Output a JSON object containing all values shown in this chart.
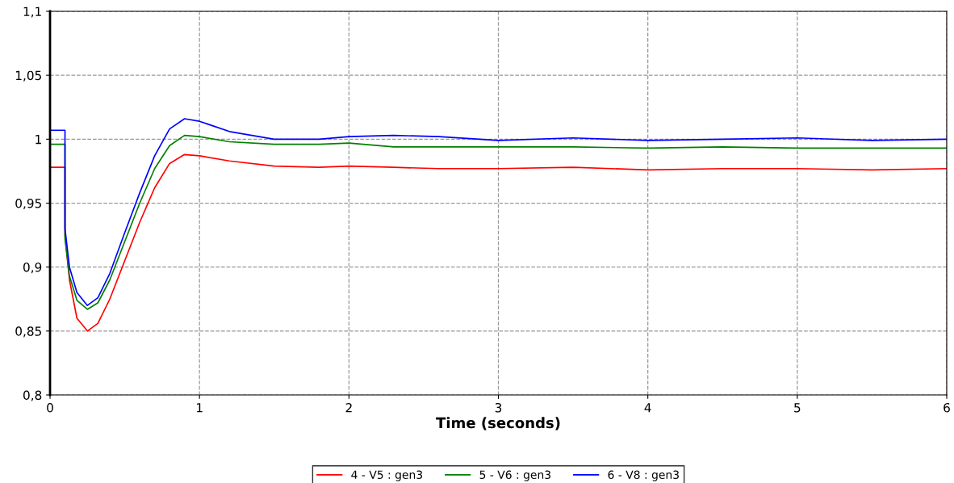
{
  "chart_data": {
    "type": "line",
    "xlabel": "Time (seconds)",
    "x": [
      0,
      0.1,
      0.1,
      0.13,
      0.18,
      0.25,
      0.32,
      0.4,
      0.5,
      0.6,
      0.7,
      0.8,
      0.9,
      1.0,
      1.2,
      1.5,
      1.8,
      2.0,
      2.3,
      2.6,
      3.0,
      3.5,
      4.0,
      4.5,
      5.0,
      5.5,
      6.0
    ],
    "series": [
      {
        "name": "4 - V5 : gen3",
        "color": "#ff0000",
        "values": [
          0.978,
          0.978,
          0.925,
          0.89,
          0.86,
          0.85,
          0.856,
          0.875,
          0.905,
          0.935,
          0.962,
          0.981,
          0.988,
          0.987,
          0.983,
          0.979,
          0.978,
          0.979,
          0.978,
          0.977,
          0.977,
          0.978,
          0.976,
          0.977,
          0.977,
          0.976,
          0.977
        ]
      },
      {
        "name": "5 - V6 : gen3",
        "color": "#008000",
        "values": [
          0.996,
          0.996,
          0.922,
          0.893,
          0.874,
          0.867,
          0.872,
          0.89,
          0.92,
          0.95,
          0.977,
          0.995,
          1.003,
          1.002,
          0.998,
          0.996,
          0.996,
          0.997,
          0.994,
          0.994,
          0.994,
          0.994,
          0.993,
          0.994,
          0.993,
          0.993,
          0.993
        ]
      },
      {
        "name": "6 - V8 : gen3",
        "color": "#0000ff",
        "values": [
          1.007,
          1.007,
          0.93,
          0.9,
          0.88,
          0.87,
          0.876,
          0.895,
          0.927,
          0.958,
          0.987,
          1.008,
          1.016,
          1.014,
          1.006,
          1.0,
          1.0,
          1.002,
          1.003,
          1.002,
          0.999,
          1.001,
          0.999,
          1.0,
          1.001,
          0.999,
          1.0
        ]
      }
    ],
    "xlim": [
      0,
      6
    ],
    "xticks": [
      0,
      1,
      2,
      3,
      4,
      5,
      6
    ],
    "ylim": [
      0.8,
      1.1
    ],
    "yticks": [
      {
        "value": 0.8,
        "label": "0,8"
      },
      {
        "value": 0.85,
        "label": "0,85"
      },
      {
        "value": 0.9,
        "label": "0,9"
      },
      {
        "value": 0.95,
        "label": "0,95"
      },
      {
        "value": 1.0,
        "label": "1"
      },
      {
        "value": 1.05,
        "label": "1,05"
      },
      {
        "value": 1.1,
        "label": "1,1"
      }
    ],
    "grid": true,
    "legend": "bottom",
    "line_style": "solid",
    "marker": "none"
  }
}
